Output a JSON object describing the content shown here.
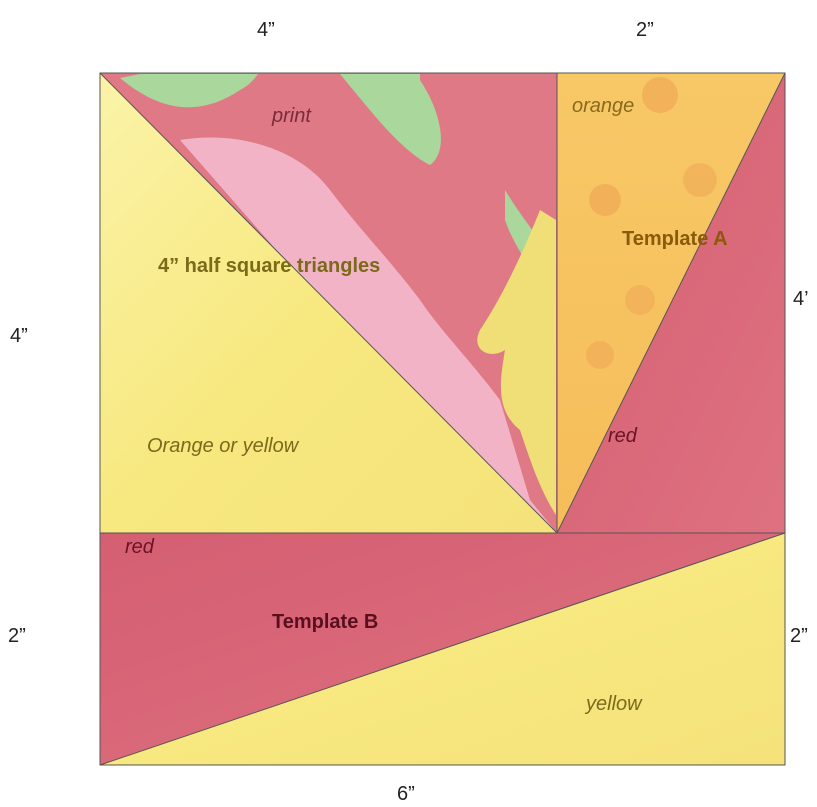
{
  "dimensions": {
    "top_left": "4”",
    "top_right": "2”",
    "left_upper": "4”",
    "right_upper": "4’",
    "left_lower": "2”",
    "right_lower": "2”",
    "bottom": "6”"
  },
  "labels": {
    "print": "print",
    "orange": "orange",
    "template_a": "Template A",
    "hst": "4” half square triangles",
    "red_a": "red",
    "orange_or_yellow": "Orange or yellow",
    "red_b": "red",
    "template_b": "Template B",
    "yellow": "yellow"
  },
  "colors": {
    "print_pink": "#e27a86",
    "print_light_pink": "#f3b4c6",
    "print_green": "#a8d89b",
    "print_yellow": "#f3e277",
    "orange": "#f6c45c",
    "orange_dots": "#ef9f52",
    "red": "#d96777",
    "red_dark": "#c94e63",
    "yellow": "#f7ea86",
    "yellow_light": "#faf09f",
    "label_olive": "#7a6a1a",
    "label_maroon": "#6a1424",
    "label_brown": "#8a5a0a"
  }
}
